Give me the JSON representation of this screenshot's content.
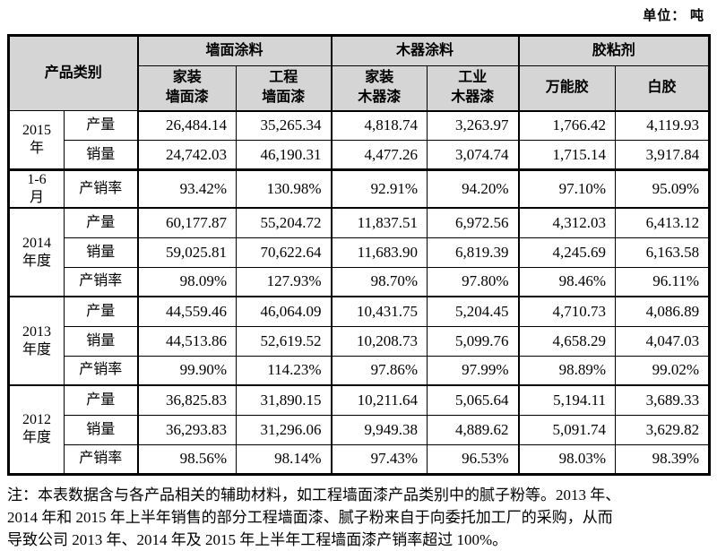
{
  "unit_label": "单位： 吨",
  "table": {
    "corner_label": "产品类别",
    "column_groups": [
      {
        "label": "墙面涂料",
        "columns": [
          "家装\n墙面漆",
          "工程\n墙面漆"
        ]
      },
      {
        "label": "木器涂料",
        "columns": [
          "家装\n木器漆",
          "工业\n木器漆"
        ]
      },
      {
        "label": "胶粘剂",
        "columns": [
          "万能胶",
          "白胶"
        ]
      }
    ],
    "sections": [
      {
        "periods": [
          {
            "text": "2015\n年",
            "span": 2
          },
          {
            "text": "1-6\n月",
            "span": 1
          }
        ],
        "split_before_row": 2,
        "rows": [
          {
            "metric": "产量",
            "values": [
              "26,484.14",
              "35,265.34",
              "4,818.74",
              "3,263.97",
              "1,766.42",
              "4,119.93"
            ]
          },
          {
            "metric": "销量",
            "values": [
              "24,742.03",
              "46,190.31",
              "4,477.26",
              "3,074.74",
              "1,715.14",
              "3,917.84"
            ]
          },
          {
            "metric": "产销率",
            "values": [
              "93.42%",
              "130.98%",
              "92.91%",
              "94.20%",
              "97.10%",
              "95.09%"
            ]
          }
        ]
      },
      {
        "periods": [
          {
            "text": "2014\n年度",
            "span": 3
          }
        ],
        "rows": [
          {
            "metric": "产量",
            "values": [
              "60,177.87",
              "55,204.72",
              "11,837.51",
              "6,972.56",
              "4,312.03",
              "6,413.12"
            ]
          },
          {
            "metric": "销量",
            "values": [
              "59,025.81",
              "70,622.64",
              "11,683.90",
              "6,819.39",
              "4,245.69",
              "6,163.58"
            ]
          },
          {
            "metric": "产销率",
            "values": [
              "98.09%",
              "127.93%",
              "98.70%",
              "97.80%",
              "98.46%",
              "96.11%"
            ]
          }
        ]
      },
      {
        "periods": [
          {
            "text": "2013\n年度",
            "span": 3
          }
        ],
        "rows": [
          {
            "metric": "产量",
            "values": [
              "44,559.46",
              "46,064.09",
              "10,431.75",
              "5,204.45",
              "4,710.73",
              "4,086.89"
            ]
          },
          {
            "metric": "销量",
            "values": [
              "44,513.86",
              "52,619.52",
              "10,208.73",
              "5,099.76",
              "4,658.29",
              "4,047.03"
            ]
          },
          {
            "metric": "产销率",
            "values": [
              "99.90%",
              "114.23%",
              "97.86%",
              "97.99%",
              "98.89%",
              "99.02%"
            ]
          }
        ]
      },
      {
        "periods": [
          {
            "text": "2012\n年度",
            "span": 3
          }
        ],
        "rows": [
          {
            "metric": "产量",
            "values": [
              "36,825.83",
              "31,890.15",
              "10,211.64",
              "5,065.64",
              "5,194.11",
              "3,689.33"
            ]
          },
          {
            "metric": "销量",
            "values": [
              "36,293.83",
              "31,296.06",
              "9,949.38",
              "4,889.62",
              "5,091.74",
              "3,629.82"
            ]
          },
          {
            "metric": "产销率",
            "values": [
              "98.56%",
              "98.14%",
              "97.43%",
              "96.53%",
              "98.03%",
              "98.39%"
            ]
          }
        ]
      }
    ]
  },
  "note_lines": [
    "注：本表数据含与各产品相关的辅助材料，如工程墙面漆产品类别中的腻子粉等。2013 年、",
    "2014 年和 2015 年上半年销售的部分工程墙面漆、腻子粉来自于向委托加工厂的采购，从而",
    "导致公司 2013 年、2014 年及 2015 年上半年工程墙面漆产销率超过 100%。"
  ],
  "colors": {
    "header_bg": "#d5d5d5",
    "border": "#000000",
    "text": "#000000"
  }
}
